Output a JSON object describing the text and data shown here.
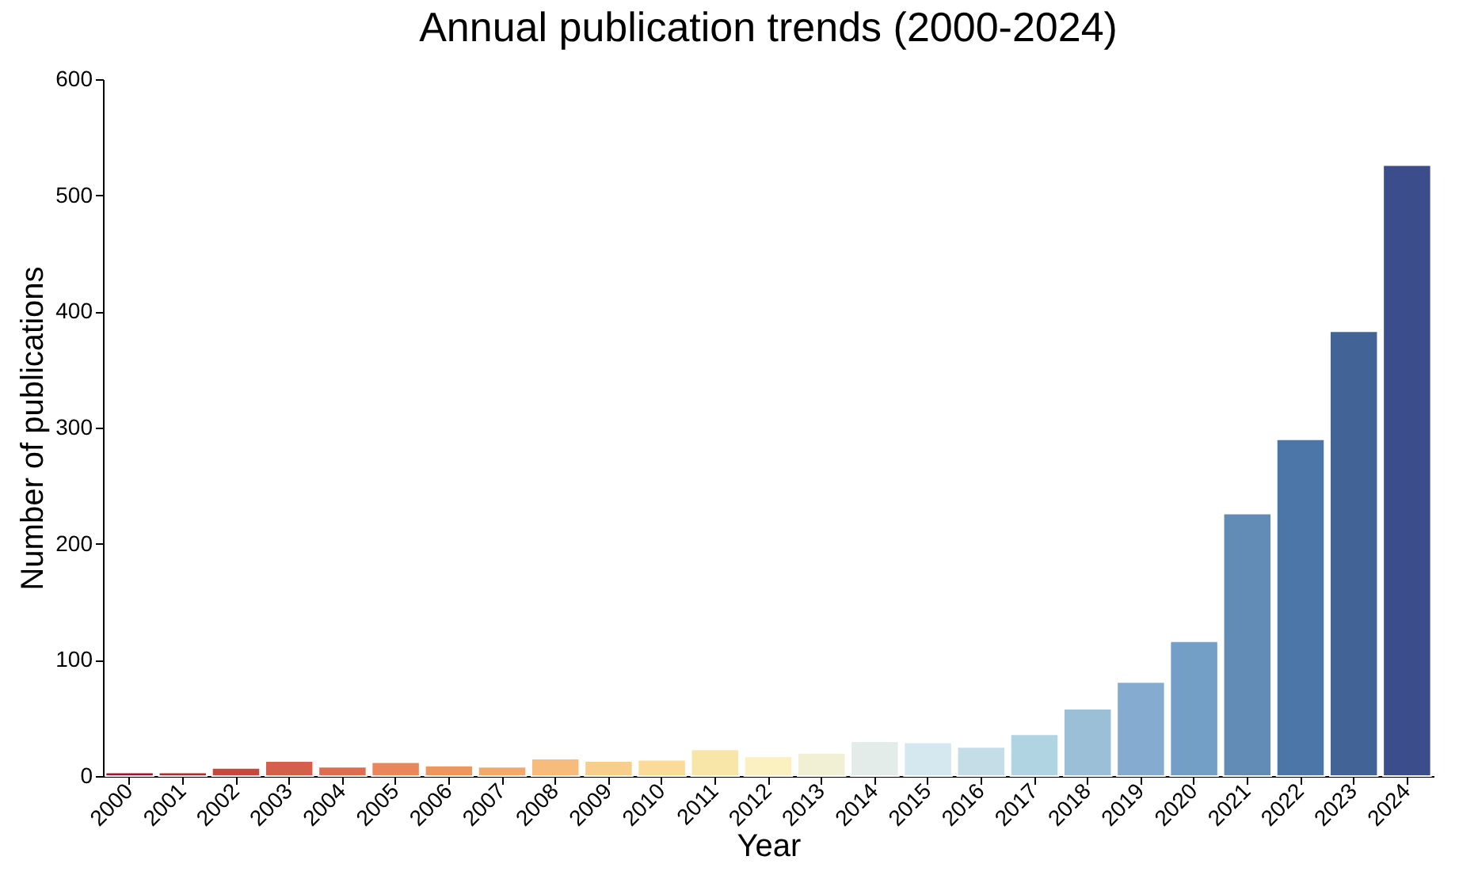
{
  "chart_data": {
    "type": "bar",
    "title": "Annual publication trends (2000-2024)",
    "xlabel": "Year",
    "ylabel": "Number of publications",
    "categories": [
      "2000",
      "2001",
      "2002",
      "2003",
      "2004",
      "2005",
      "2006",
      "2007",
      "2008",
      "2009",
      "2010",
      "2011",
      "2012",
      "2013",
      "2014",
      "2015",
      "2016",
      "2017",
      "2018",
      "2019",
      "2020",
      "2021",
      "2022",
      "2023",
      "2024"
    ],
    "values": [
      3,
      3,
      7,
      13,
      8,
      12,
      9,
      8,
      15,
      13,
      14,
      23,
      17,
      20,
      30,
      29,
      25,
      36,
      58,
      81,
      116,
      226,
      290,
      383,
      526
    ],
    "colors": [
      "#a3152b",
      "#b52a2d",
      "#c9463a",
      "#d5604a",
      "#de6c4e",
      "#e8875c",
      "#ee965f",
      "#f3a86c",
      "#f7bb7c",
      "#f9cd8c",
      "#fbdb99",
      "#f8e6a9",
      "#fbf0c0",
      "#f1f0d4",
      "#e3ece8",
      "#d5e7ef",
      "#c4dde6",
      "#b0d4e2",
      "#9bbfd7",
      "#85acd0",
      "#739fc7",
      "#628cb5",
      "#4b76a7",
      "#426396",
      "#3c4d8c"
    ],
    "ylim": [
      0,
      600
    ],
    "yticks": [
      0,
      100,
      200,
      300,
      400,
      500,
      600
    ],
    "grid": false,
    "legend": false
  }
}
